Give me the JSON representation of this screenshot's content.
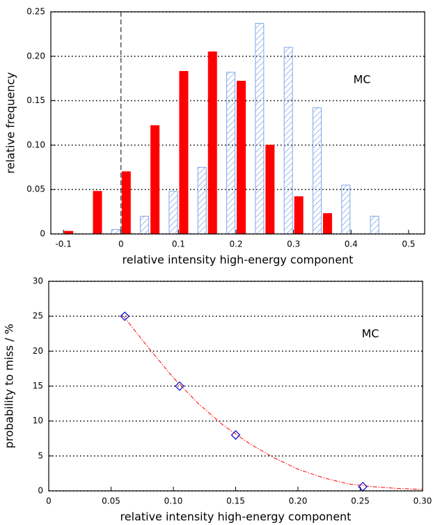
{
  "chart_data": [
    {
      "type": "bar",
      "x_label": "relative intensity high-energy component",
      "y_label": "relative frequency",
      "annotation": "MC",
      "x": [
        -0.1,
        -0.05,
        0,
        0.05,
        0.1,
        0.15,
        0.2,
        0.25,
        0.3,
        0.35,
        0.4,
        0.45
      ],
      "series": [
        {
          "color": "#7fa6e8",
          "hatch": true,
          "values": [
            null,
            null,
            0.005,
            0.02,
            0.048,
            0.075,
            0.182,
            0.237,
            0.21,
            0.142,
            0.055,
            0.02
          ]
        },
        {
          "color": "#ff0000",
          "hatch": false,
          "values": [
            0.003,
            0.048,
            0.07,
            0.122,
            0.183,
            0.205,
            0.172,
            0.1,
            0.042,
            0.023,
            null,
            null
          ]
        }
      ],
      "xlim": [
        -0.122,
        0.528
      ],
      "xticks": [
        -0.1,
        0,
        0.1,
        0.2,
        0.3,
        0.4,
        0.5
      ],
      "ylim": [
        0,
        0.25
      ],
      "yticks": [
        0,
        0.05,
        {
          "value": 0.1,
          "label": "0.10"
        },
        0.15,
        {
          "value": 0.2,
          "label": "0.20"
        },
        0.25
      ],
      "grid": true,
      "vline": 0
    },
    {
      "type": "line",
      "x_label": "relative intensity high-energy component",
      "y_label": "probability to miss / %",
      "annotation": "MC",
      "series": [
        {
          "color": "#ff0000",
          "line_style": "dashdot",
          "marker": "none",
          "x": [
            0.06,
            0.08,
            0.1,
            0.12,
            0.14,
            0.16,
            0.18,
            0.2,
            0.22,
            0.24,
            0.26,
            0.28,
            0.3
          ],
          "values": [
            25,
            20.5,
            16.2,
            12.5,
            9.4,
            6.9,
            4.8,
            3.1,
            1.9,
            1.0,
            0.6,
            0.35,
            0.2
          ]
        },
        {
          "color": "#0000cc",
          "line_style": "none",
          "marker": "diamond",
          "x": [
            0.061,
            0.105,
            0.15,
            0.252
          ],
          "values": [
            25,
            15,
            8,
            0.6
          ]
        }
      ],
      "xlim": [
        0,
        0.3
      ],
      "xticks": [
        0,
        0.05,
        {
          "value": 0.1,
          "label": "0.10"
        },
        0.15,
        {
          "value": 0.2,
          "label": "0.20"
        },
        0.25,
        {
          "value": 0.3,
          "label": "0.30"
        }
      ],
      "ylim": [
        0,
        30
      ],
      "yticks": [
        0,
        5,
        10,
        15,
        20,
        25,
        30
      ],
      "grid": true
    }
  ]
}
